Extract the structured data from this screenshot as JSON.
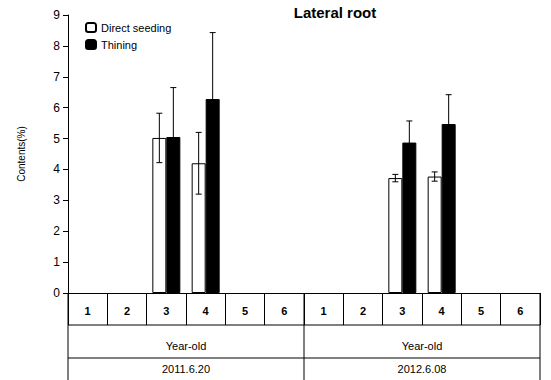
{
  "chart_data": {
    "type": "bar",
    "title": "Lateral root",
    "y_label": "Contents(%)",
    "categories": [
      "1",
      "2",
      "3",
      "4",
      "5",
      "6",
      "1",
      "2",
      "3",
      "4",
      "5",
      "6"
    ],
    "groups": [
      {
        "name": "2011.6.20",
        "label": "Year-old"
      },
      {
        "name": "2012.6.08",
        "label": "Year-old"
      }
    ],
    "series": [
      {
        "name": "Direct seeding",
        "color": "#ffffff",
        "values": [
          null,
          null,
          5.02,
          4.2,
          null,
          null,
          null,
          null,
          3.72,
          3.77,
          null,
          null
        ],
        "errors": [
          null,
          null,
          0.8,
          1.0,
          null,
          null,
          null,
          null,
          0.12,
          0.15,
          null,
          null
        ]
      },
      {
        "name": "Thining",
        "color": "#000000",
        "values": [
          null,
          null,
          5.05,
          6.28,
          null,
          null,
          null,
          null,
          4.87,
          5.47,
          null,
          null
        ],
        "errors": [
          null,
          null,
          1.6,
          2.15,
          null,
          null,
          null,
          null,
          0.7,
          0.95,
          null,
          null
        ]
      }
    ],
    "ylim": [
      0,
      9
    ],
    "yticks": [
      0,
      1,
      2,
      3,
      4,
      5,
      6,
      7,
      8,
      9
    ],
    "grid": false,
    "legend": "upper left"
  }
}
